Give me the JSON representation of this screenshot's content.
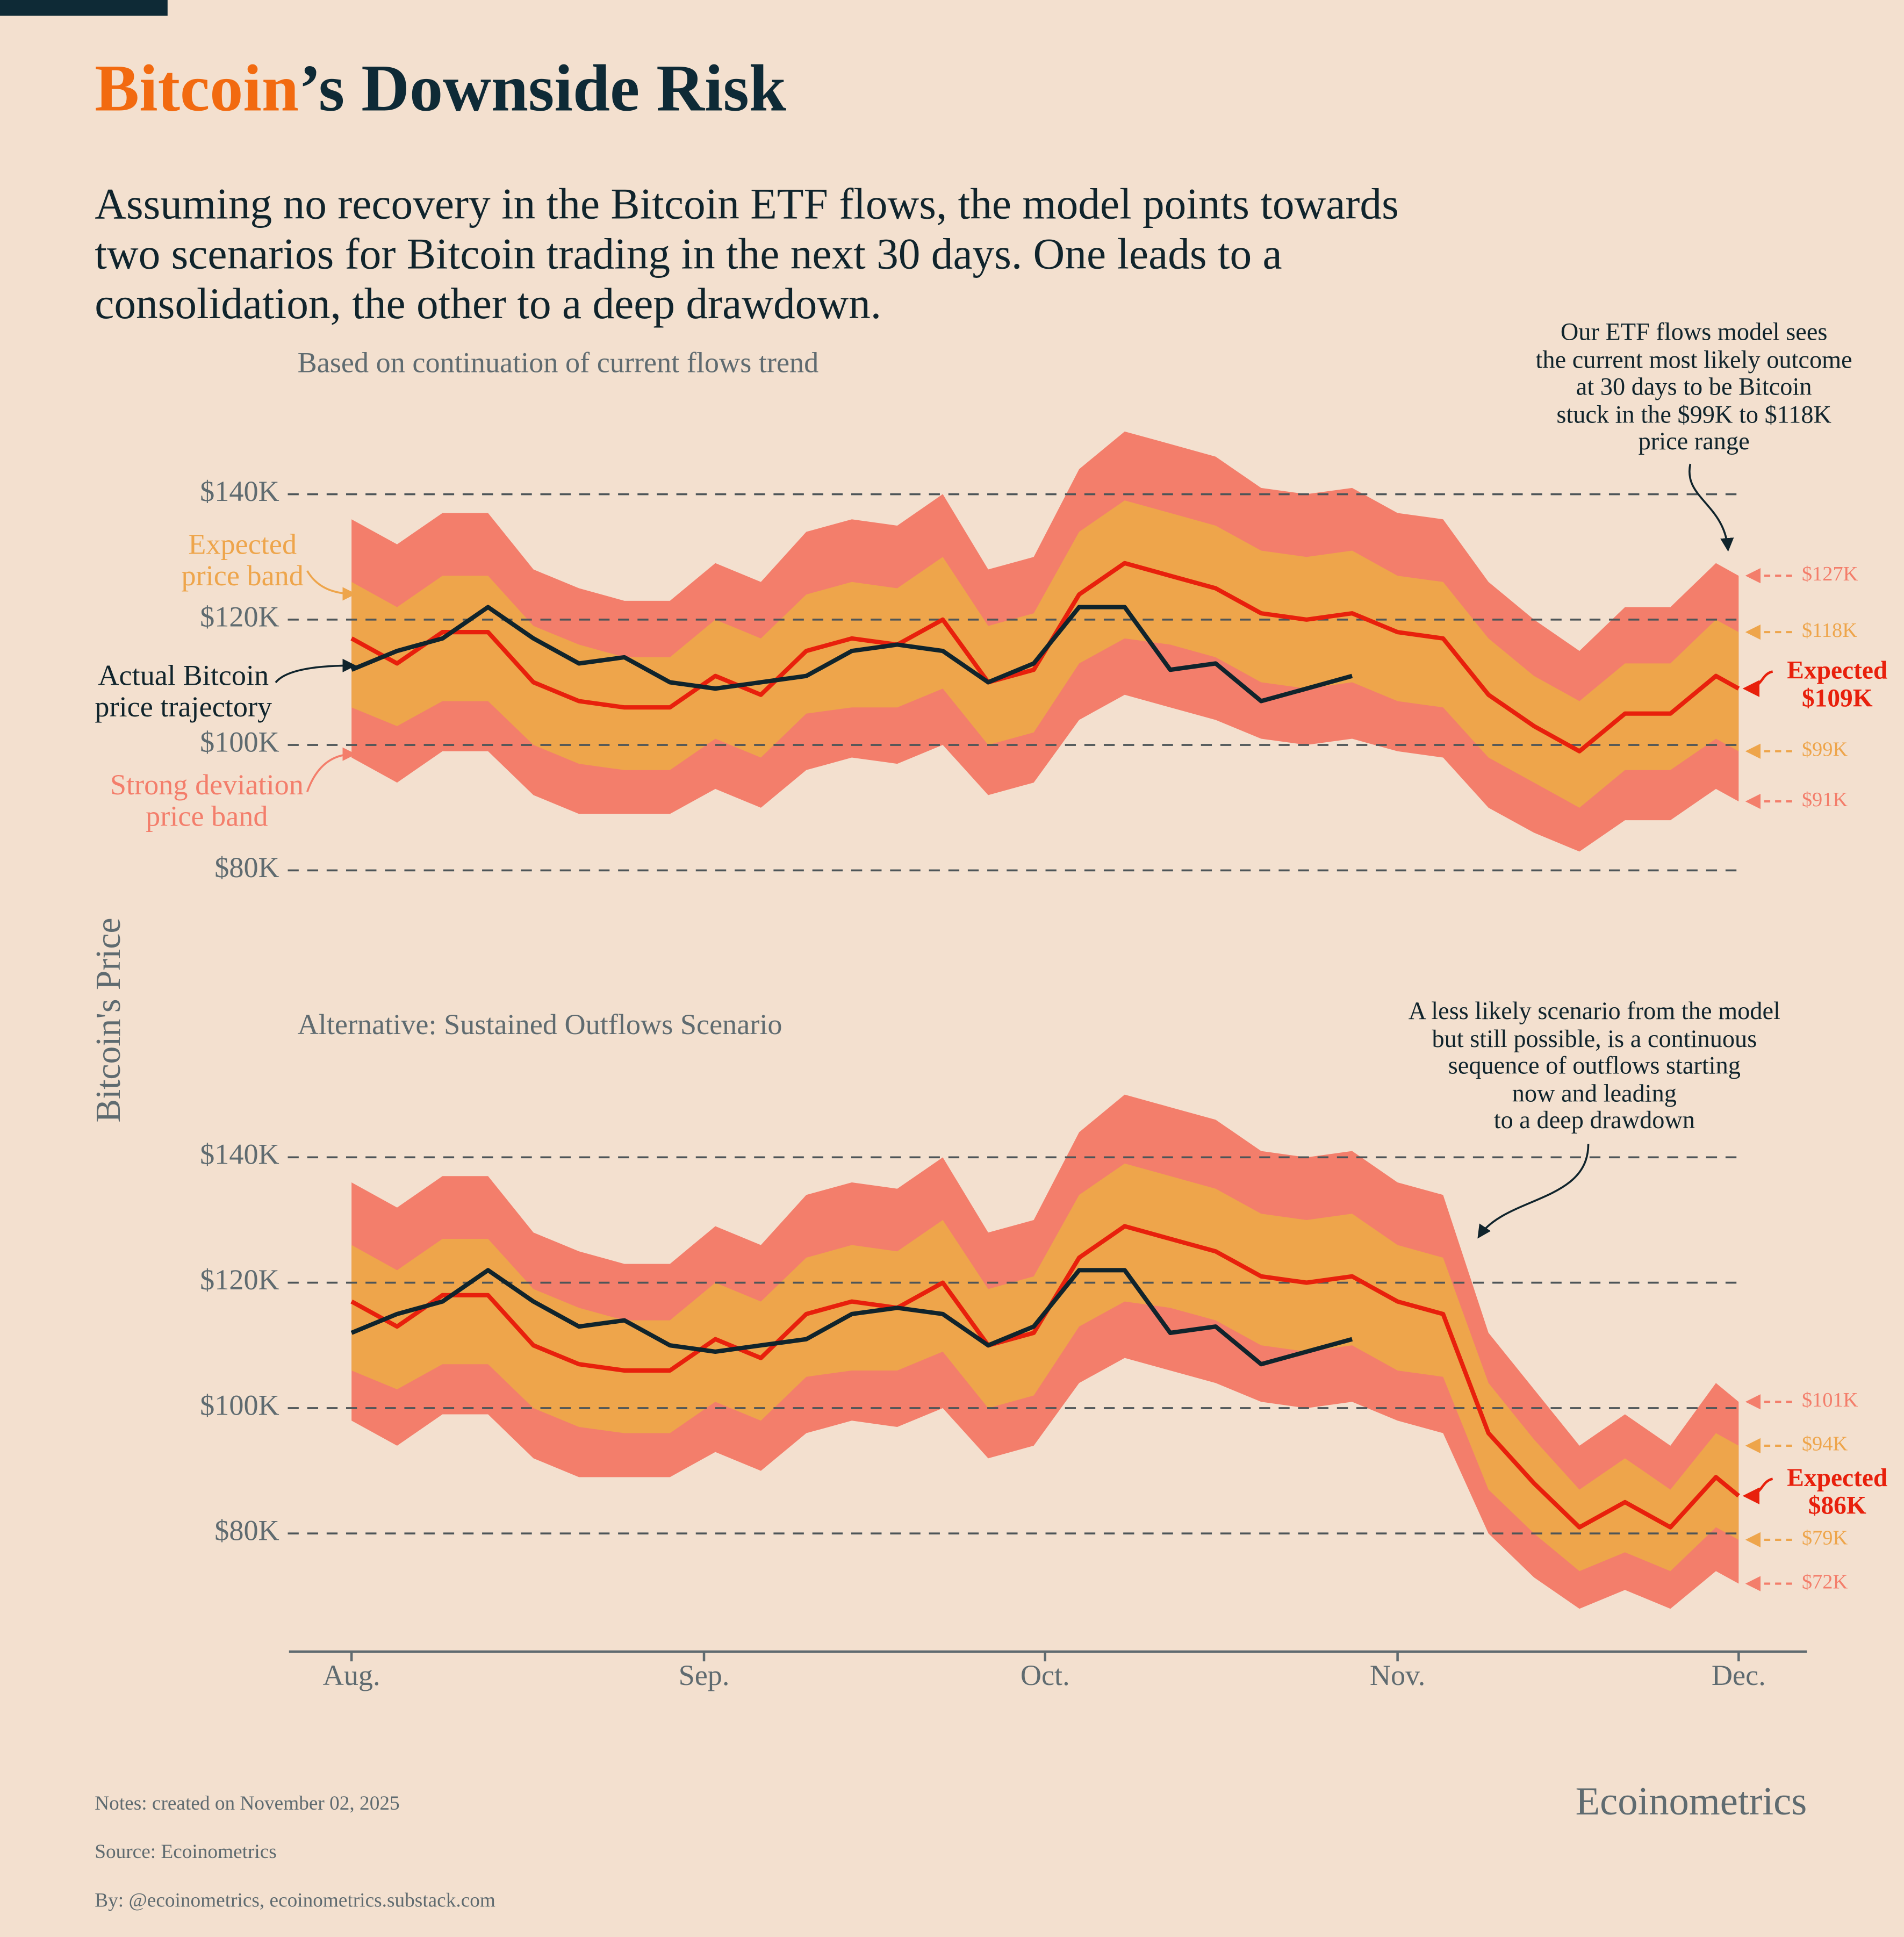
{
  "title_highlight": "Bitcoin",
  "title_rest": "’s Downside Risk",
  "subtitle": "Assuming no recovery in the Bitcoin ETF flows, the model points towards\ntwo scenarios for Bitcoin trading in the next 30 days. One leads to a\nconsolidation, the other to a deep drawdown.",
  "y_axis_label": "Bitcoin's Price",
  "notes": [
    "Notes: created on November 02, 2025",
    "Source: Ecoinometrics",
    "By: @ecoinometrics, ecoinometrics.substack.com"
  ],
  "brand": "Ecoinometrics",
  "chart_data": [
    {
      "type": "line",
      "title": "Based on continuation of current flows trend",
      "annotation": "Our ETF flows model sees\nthe current most likely outcome\nat 30 days to be Bitcoin\nstuck in the $99K to $118K\nprice range",
      "x": [
        0,
        4,
        8,
        12,
        16,
        20,
        24,
        28,
        32,
        36,
        40,
        44,
        48,
        52,
        56,
        60,
        64,
        68,
        72,
        76,
        80,
        84,
        88,
        92,
        96,
        100,
        104,
        108,
        112,
        116,
        120,
        122
      ],
      "xlim": [
        -5.5,
        128
      ],
      "ylim": [
        78000,
        152000
      ],
      "yticks": [
        {
          "value": 80000,
          "label": "$80K"
        },
        {
          "value": 100000,
          "label": "$100K"
        },
        {
          "value": 120000,
          "label": "$120K"
        },
        {
          "value": 140000,
          "label": "$140K"
        }
      ],
      "grid": true,
      "series": [
        {
          "name": "Strong deviation\nprice band",
          "color": "#f37e6b",
          "upper": [
            136000,
            132000,
            137000,
            137000,
            128000,
            125000,
            123000,
            123000,
            129000,
            126000,
            134000,
            136000,
            135000,
            140000,
            128000,
            130000,
            144000,
            150000,
            148000,
            146000,
            141000,
            140000,
            141000,
            137000,
            136000,
            126000,
            120000,
            115000,
            122000,
            122000,
            129000,
            127000
          ],
          "lower": [
            98000,
            94000,
            99000,
            99000,
            92000,
            89000,
            89000,
            89000,
            93000,
            90000,
            96000,
            98000,
            97000,
            100000,
            92000,
            94000,
            104000,
            108000,
            106000,
            104000,
            101000,
            100000,
            101000,
            99000,
            98000,
            90000,
            86000,
            83000,
            88000,
            88000,
            93000,
            91000
          ],
          "end_labels": [
            {
              "value": 127000,
              "label": "$127K"
            },
            {
              "value": 91000,
              "label": "$91K"
            }
          ]
        },
        {
          "name": "Expected\nprice band",
          "color": "#eea54b",
          "upper": [
            126000,
            122000,
            127000,
            127000,
            119000,
            116000,
            114000,
            114000,
            120000,
            117000,
            124000,
            126000,
            125000,
            130000,
            119000,
            121000,
            134000,
            139000,
            137000,
            135000,
            131000,
            130000,
            131000,
            127000,
            126000,
            117000,
            111000,
            107000,
            113000,
            113000,
            120000,
            118000
          ],
          "lower": [
            106000,
            103000,
            107000,
            107000,
            100000,
            97000,
            96000,
            96000,
            101000,
            98000,
            105000,
            106000,
            106000,
            109000,
            100000,
            102000,
            113000,
            117000,
            116000,
            114000,
            110000,
            109000,
            110000,
            107000,
            106000,
            98000,
            94000,
            90000,
            96000,
            96000,
            101000,
            99000
          ],
          "end_labels": [
            {
              "value": 118000,
              "label": "$118K"
            },
            {
              "value": 99000,
              "label": "$99K"
            }
          ]
        },
        {
          "name": "Expected",
          "color": "#e8200c",
          "values": [
            117000,
            113000,
            118000,
            118000,
            110000,
            107000,
            106000,
            106000,
            111000,
            108000,
            115000,
            117000,
            116000,
            120000,
            110000,
            112000,
            124000,
            129000,
            127000,
            125000,
            121000,
            120000,
            121000,
            118000,
            117000,
            108000,
            103000,
            99000,
            105000,
            105000,
            111000,
            109000
          ],
          "end_label": {
            "value": 109000,
            "label": "$109K"
          }
        },
        {
          "name": "Actual Bitcoin\nprice trajectory",
          "color": "#10242c",
          "values": [
            112000,
            115000,
            117000,
            122000,
            117000,
            113000,
            114000,
            110000,
            109000,
            110000,
            111000,
            115000,
            116000,
            115000,
            110000,
            113000,
            122000,
            122000,
            112000,
            113000,
            107000,
            109000,
            111000,
            null,
            null,
            null,
            null,
            null,
            null,
            null,
            null,
            null
          ]
        }
      ]
    },
    {
      "type": "line",
      "title": "Alternative: Sustained Outflows Scenario",
      "annotation": "A less likely scenario from the model\nbut still possible, is a continuous\nsequence of outflows starting\nnow and leading\nto a deep drawdown",
      "x": [
        0,
        4,
        8,
        12,
        16,
        20,
        24,
        28,
        32,
        36,
        40,
        44,
        48,
        52,
        56,
        60,
        64,
        68,
        72,
        76,
        80,
        84,
        88,
        92,
        96,
        100,
        104,
        108,
        112,
        116,
        120,
        122
      ],
      "xlim": [
        -5.5,
        128
      ],
      "xticks": [
        {
          "value": 0,
          "label": "Aug."
        },
        {
          "value": 31,
          "label": "Sep."
        },
        {
          "value": 61,
          "label": "Oct."
        },
        {
          "value": 92,
          "label": "Nov."
        },
        {
          "value": 122,
          "label": "Dec."
        }
      ],
      "ylim": [
        66000,
        152000
      ],
      "yticks": [
        {
          "value": 80000,
          "label": "$80K"
        },
        {
          "value": 100000,
          "label": "$100K"
        },
        {
          "value": 120000,
          "label": "$120K"
        },
        {
          "value": 140000,
          "label": "$140K"
        }
      ],
      "grid": true,
      "series": [
        {
          "color": "#f37e6b",
          "upper": [
            136000,
            132000,
            137000,
            137000,
            128000,
            125000,
            123000,
            123000,
            129000,
            126000,
            134000,
            136000,
            135000,
            140000,
            128000,
            130000,
            144000,
            150000,
            148000,
            146000,
            141000,
            140000,
            141000,
            136000,
            134000,
            112000,
            103000,
            94000,
            99000,
            94000,
            104000,
            101000
          ],
          "lower": [
            98000,
            94000,
            99000,
            99000,
            92000,
            89000,
            89000,
            89000,
            93000,
            90000,
            96000,
            98000,
            97000,
            100000,
            92000,
            94000,
            104000,
            108000,
            106000,
            104000,
            101000,
            100000,
            101000,
            98000,
            96000,
            80000,
            73000,
            68000,
            71000,
            68000,
            74000,
            72000
          ],
          "end_labels": [
            {
              "value": 101000,
              "label": "$101K"
            },
            {
              "value": 72000,
              "label": "$72K"
            }
          ]
        },
        {
          "color": "#eea54b",
          "upper": [
            126000,
            122000,
            127000,
            127000,
            119000,
            116000,
            114000,
            114000,
            120000,
            117000,
            124000,
            126000,
            125000,
            130000,
            119000,
            121000,
            134000,
            139000,
            137000,
            135000,
            131000,
            130000,
            131000,
            126000,
            124000,
            104000,
            95000,
            87000,
            92000,
            87000,
            96000,
            94000
          ],
          "lower": [
            106000,
            103000,
            107000,
            107000,
            100000,
            97000,
            96000,
            96000,
            101000,
            98000,
            105000,
            106000,
            106000,
            109000,
            100000,
            102000,
            113000,
            117000,
            116000,
            114000,
            110000,
            109000,
            110000,
            106000,
            105000,
            87000,
            80000,
            74000,
            77000,
            74000,
            81000,
            79000
          ],
          "end_labels": [
            {
              "value": 94000,
              "label": "$94K"
            },
            {
              "value": 79000,
              "label": "$79K"
            }
          ]
        },
        {
          "name": "Expected",
          "color": "#e8200c",
          "values": [
            117000,
            113000,
            118000,
            118000,
            110000,
            107000,
            106000,
            106000,
            111000,
            108000,
            115000,
            117000,
            116000,
            120000,
            110000,
            112000,
            124000,
            129000,
            127000,
            125000,
            121000,
            120000,
            121000,
            117000,
            115000,
            96000,
            88000,
            81000,
            85000,
            81000,
            89000,
            86000
          ],
          "end_label": {
            "value": 86000,
            "label": "$86K"
          }
        },
        {
          "color": "#10242c",
          "values": [
            112000,
            115000,
            117000,
            122000,
            117000,
            113000,
            114000,
            110000,
            109000,
            110000,
            111000,
            115000,
            116000,
            115000,
            110000,
            113000,
            122000,
            122000,
            112000,
            113000,
            107000,
            109000,
            111000,
            null,
            null,
            null,
            null,
            null,
            null,
            null,
            null,
            null
          ]
        }
      ]
    }
  ]
}
